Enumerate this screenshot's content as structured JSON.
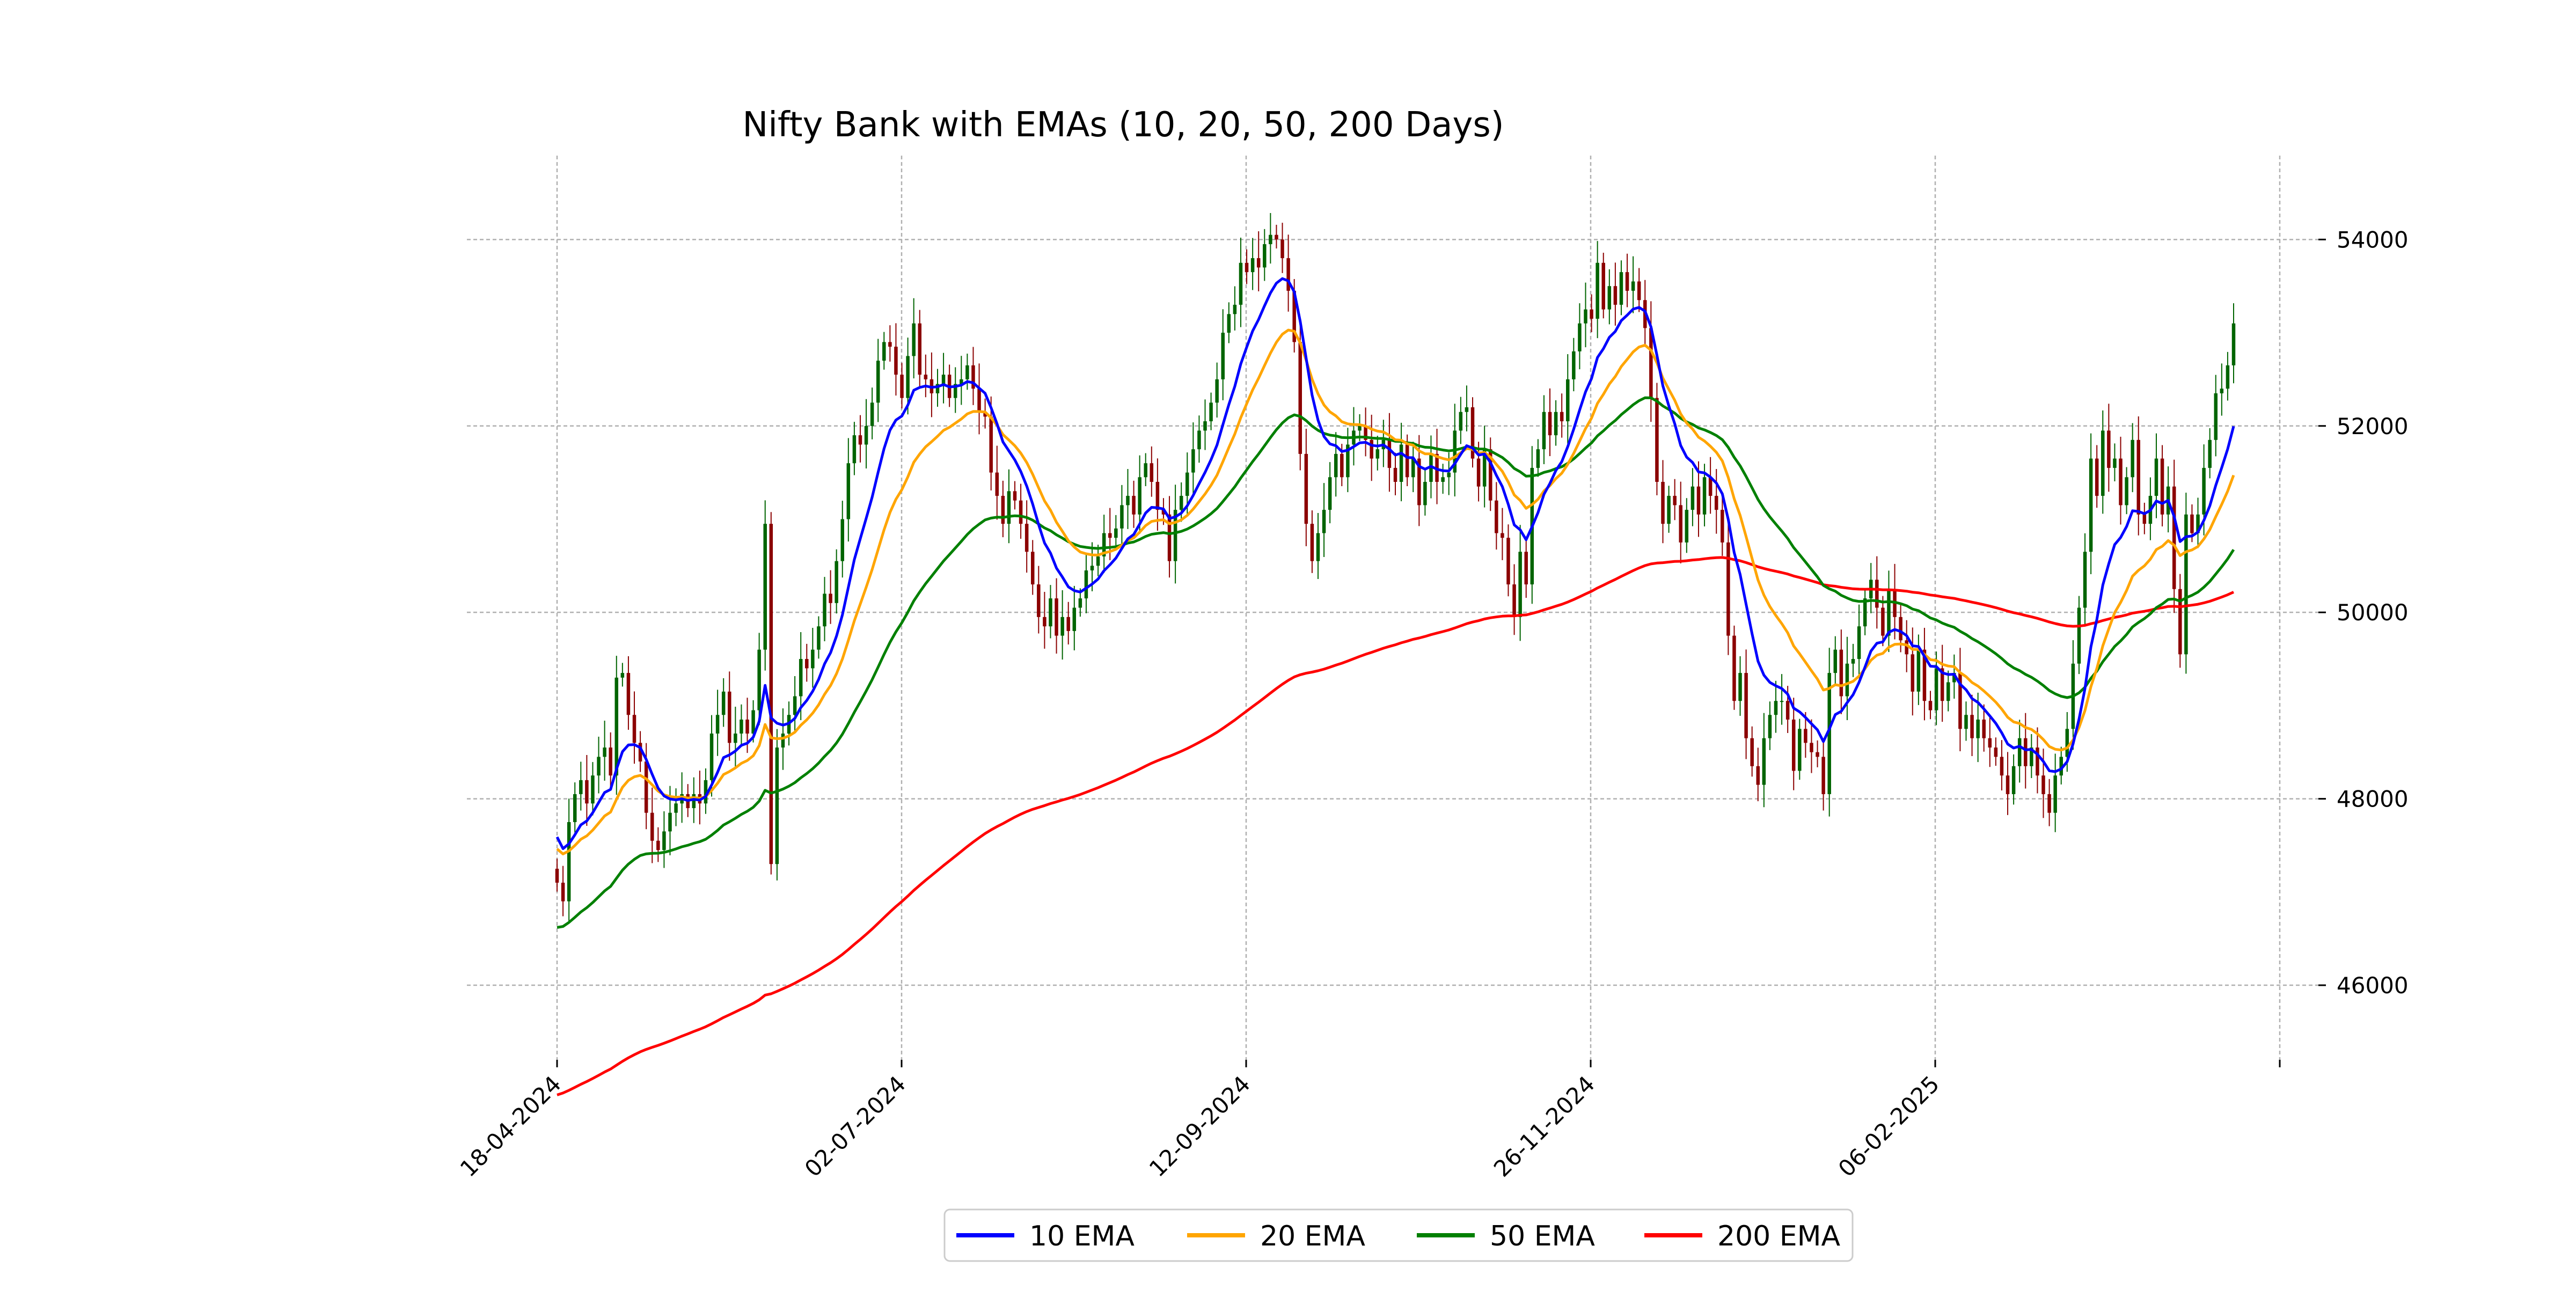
{
  "chart_data": {
    "type": "line",
    "title": "Nifty Bank with EMAs (10, 20, 50, 200 Days)",
    "xlabel": "",
    "ylabel": "",
    "x_tick_labels": [
      "18-04-2024",
      "02-07-2024",
      "12-09-2024",
      "26-11-2024",
      "06-02-2025"
    ],
    "y_ticks": [
      46000,
      48000,
      50000,
      52000,
      54000
    ],
    "y_tick_labels": [
      "46000",
      "48000",
      "50000",
      "52000",
      "54000"
    ],
    "ylim": [
      45200,
      54900
    ],
    "y_axis_side": "right",
    "grid": true,
    "legend_position": "bottom-center",
    "candlestick_colors": {
      "up": "#006400",
      "down": "#8b0000"
    },
    "candles_close": [
      47100,
      46900,
      47750,
      48050,
      48200,
      47950,
      48250,
      48450,
      48550,
      48250,
      49300,
      49350,
      48900,
      48600,
      48400,
      47850,
      47550,
      47450,
      47650,
      47850,
      47950,
      48050,
      47900,
      48050,
      47950,
      48200,
      48700,
      48900,
      49150,
      48600,
      48700,
      48850,
      48700,
      48950,
      49600,
      50950,
      47300,
      48550,
      48700,
      48900,
      49100,
      49500,
      49400,
      49600,
      49850,
      50200,
      50100,
      50550,
      51000,
      51600,
      51900,
      51800,
      52000,
      52250,
      52700,
      52900,
      52850,
      52550,
      52300,
      52750,
      53100,
      52550,
      52500,
      52350,
      52450,
      52550,
      52300,
      52450,
      52500,
      52650,
      52400,
      52150,
      52100,
      51500,
      51250,
      50950,
      51300,
      51200,
      50950,
      50650,
      50300,
      49950,
      49850,
      50150,
      49750,
      49950,
      49800,
      50050,
      50150,
      50450,
      50500,
      50600,
      50850,
      50800,
      50900,
      51150,
      51250,
      51050,
      51450,
      51600,
      51400,
      51100,
      51050,
      50550,
      51100,
      51250,
      51500,
      51750,
      51950,
      52050,
      52250,
      52500,
      53000,
      53200,
      53300,
      53750,
      53650,
      53800,
      53700,
      53950,
      54050,
      54000,
      53800,
      53450,
      52900,
      51700,
      50950,
      50550,
      50850,
      51100,
      51450,
      51700,
      51450,
      51800,
      51950,
      52000,
      51850,
      51650,
      51750,
      51850,
      51550,
      51400,
      51800,
      51450,
      51650,
      51150,
      51400,
      51700,
      51400,
      51450,
      51500,
      51950,
      52150,
      52200,
      51650,
      51350,
      51750,
      51200,
      50850,
      50800,
      50300,
      49950,
      50650,
      50300,
      51550,
      51750,
      52150,
      51900,
      52150,
      52050,
      52500,
      52800,
      53100,
      53250,
      53150,
      53750,
      53250,
      53500,
      53300,
      53650,
      53450,
      53550,
      53350,
      53050,
      52300,
      51400,
      50950,
      51250,
      51150,
      50750,
      51100,
      51350,
      51050,
      51450,
      51250,
      51100,
      50750,
      49750,
      49050,
      49350,
      48650,
      48350,
      48150,
      48650,
      48900,
      49050,
      49050,
      48850,
      48300,
      48750,
      48600,
      48500,
      48450,
      48050,
      49350,
      49600,
      49100,
      49450,
      49500,
      49850,
      50150,
      50350,
      50050,
      49750,
      50250,
      49950,
      49700,
      49550,
      49150,
      49600,
      49050,
      48950,
      49400,
      49050,
      49250,
      49350,
      48750,
      48900,
      48650,
      48850,
      48650,
      48550,
      48450,
      48250,
      48050,
      48350,
      48650,
      48350,
      48550,
      48250,
      48050,
      47850,
      48250,
      48450,
      48750,
      49450,
      50050,
      50650,
      51650,
      51250,
      51950,
      51550,
      51650,
      51150,
      51450,
      51850,
      51050,
      50950,
      51250,
      51650,
      51050,
      51350,
      50250,
      49550,
      51050,
      50850,
      51050,
      51550,
      51850,
      52350,
      52400,
      52650,
      53100
    ]
  },
  "legend": {
    "items": [
      {
        "label": "10 EMA",
        "color": "#0000ff"
      },
      {
        "label": "20 EMA",
        "color": "#ffa500"
      },
      {
        "label": "50 EMA",
        "color": "#008000"
      },
      {
        "label": "200 EMA",
        "color": "#ff0000"
      }
    ]
  }
}
